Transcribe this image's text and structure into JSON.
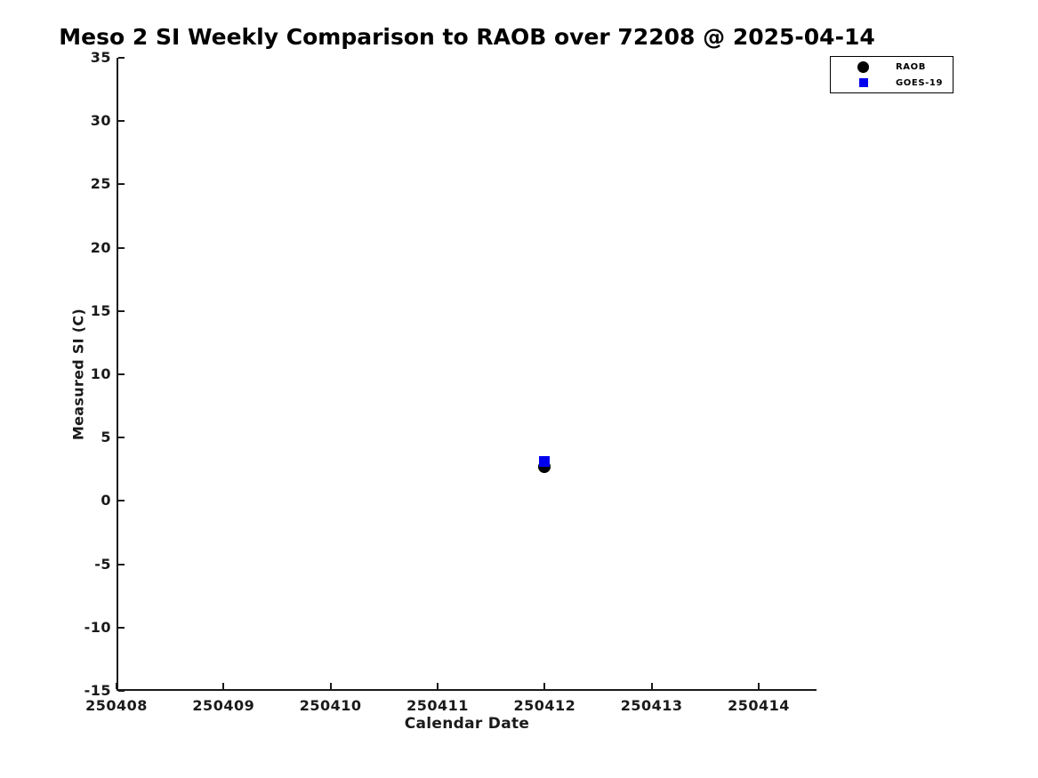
{
  "chart_data": {
    "type": "scatter",
    "title": "Meso 2 SI Weekly Comparison to RAOB over 72208 @ 2025-04-14",
    "xlabel": "Calendar Date",
    "ylabel": "Measured SI (C)",
    "xlim": [
      250408,
      250414.54
    ],
    "ylim": [
      -15,
      35
    ],
    "x_ticks": [
      250408,
      250409,
      250410,
      250411,
      250412,
      250413,
      250414
    ],
    "y_ticks": [
      35,
      30,
      25,
      20,
      15,
      10,
      5,
      0,
      -5,
      -10,
      -15
    ],
    "grid": false,
    "background": "#ffffff",
    "axis_color": "#1a1a1a",
    "legend_position": "top-right-outside",
    "series": [
      {
        "name": "RAOB",
        "marker": "circle",
        "color": "#000000",
        "points": [
          {
            "x": 250412,
            "y": 2.7
          }
        ]
      },
      {
        "name": "GOES-19",
        "marker": "square",
        "color": "#0000ee",
        "points": [
          {
            "x": 250412,
            "y": 3.1
          }
        ]
      }
    ]
  }
}
